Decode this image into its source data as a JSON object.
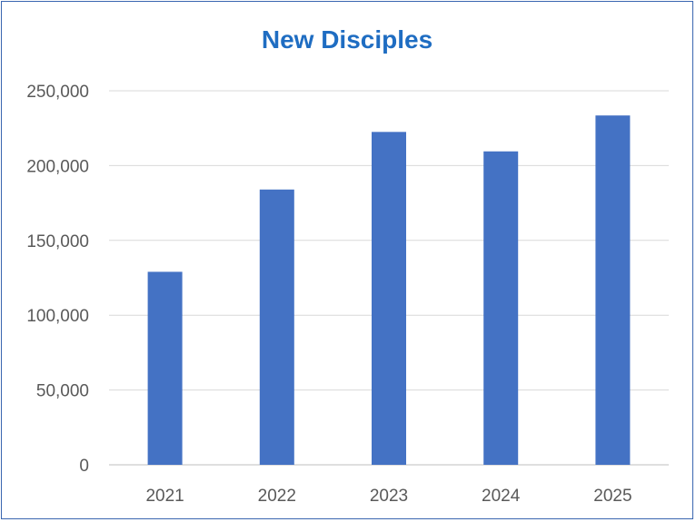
{
  "chart_data": {
    "type": "bar",
    "title": "New Disciples",
    "categories": [
      "2021",
      "2022",
      "2023",
      "2024",
      "2025"
    ],
    "values": [
      129000,
      184000,
      222500,
      209500,
      233500
    ],
    "ylim": [
      0,
      250000
    ],
    "yticks": [
      0,
      50000,
      100000,
      150000,
      200000,
      250000
    ],
    "ytick_labels": [
      "0",
      "50,000",
      "100,000",
      "150,000",
      "200,000",
      "250,000"
    ],
    "grid": true,
    "legend": "none",
    "colors": {
      "bar": "#4472c4",
      "grid": "#d9d9d9",
      "title": "#1f6dc2",
      "border": "#3a66b0"
    }
  }
}
